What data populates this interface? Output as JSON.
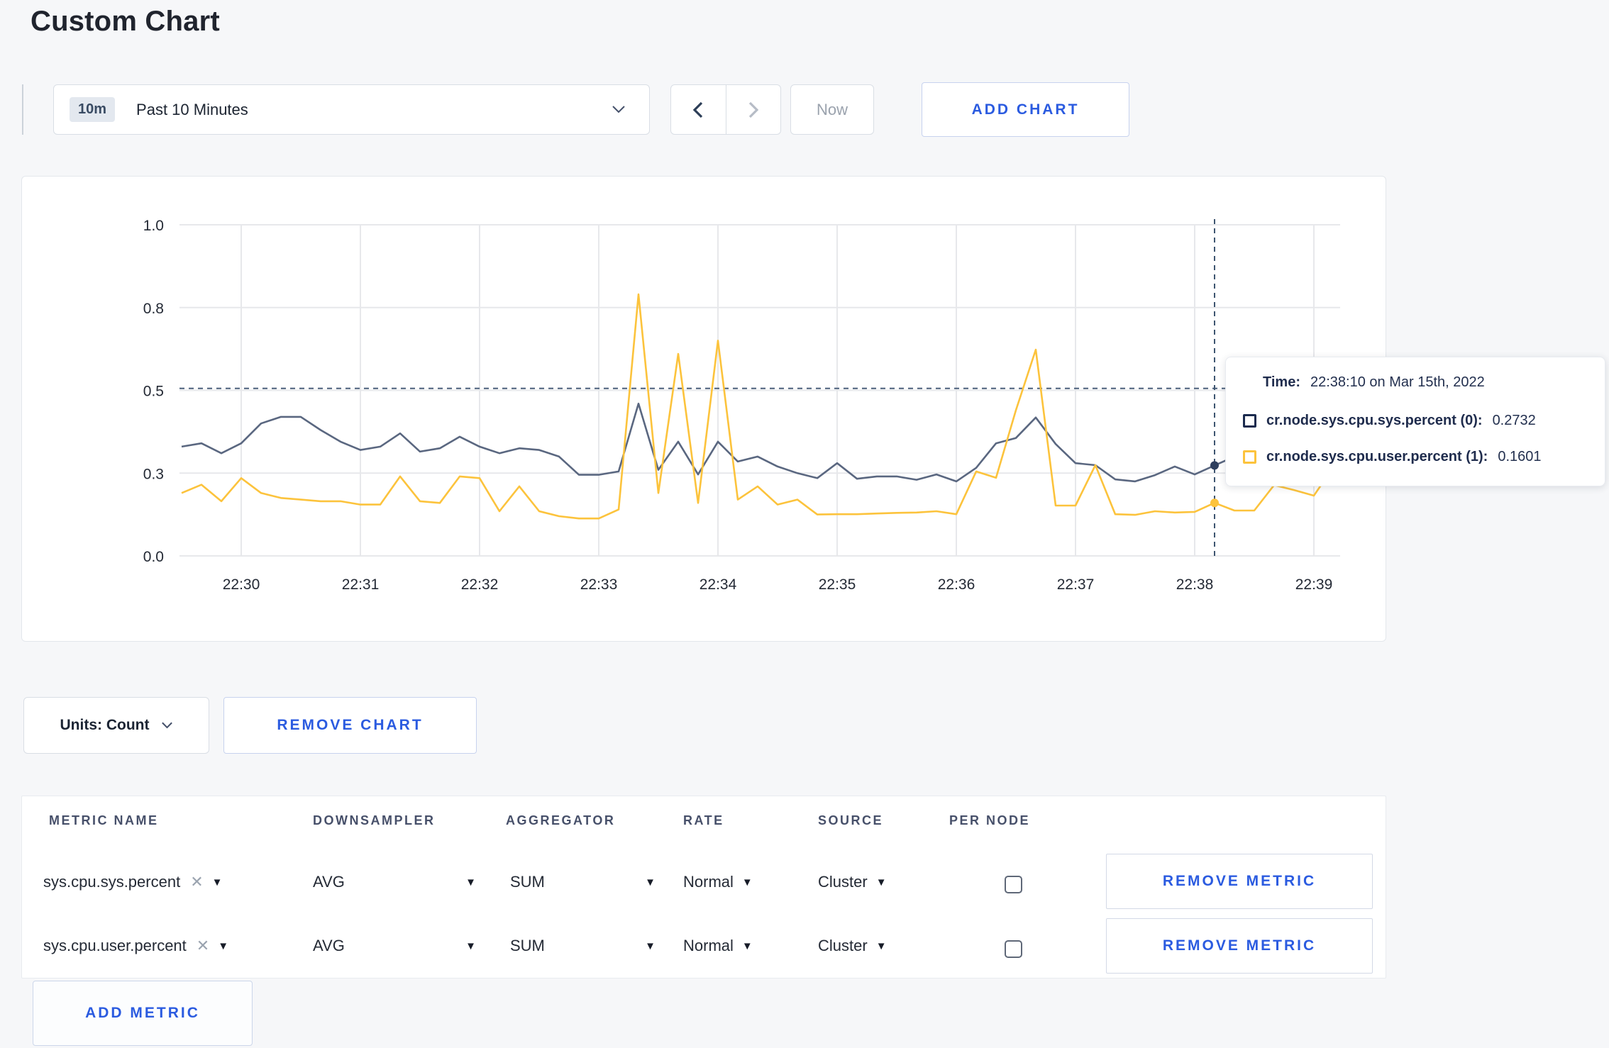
{
  "page": {
    "title": "Custom Chart",
    "accent": "#2b5be0",
    "background": "#f6f7f9"
  },
  "toolbar": {
    "range_badge": "10m",
    "range_label": "Past 10 Minutes",
    "now_label": "Now",
    "add_chart_label": "ADD CHART"
  },
  "chart_data": {
    "type": "line",
    "title": "",
    "xlabel": "",
    "ylabel": "",
    "ylim": [
      0,
      1
    ],
    "grid": true,
    "legend_position": "tooltip-only",
    "y_ticks": {
      "labels": [
        "0.0",
        "0.3",
        "0.5",
        "0.8",
        "1.0"
      ],
      "positions": [
        0,
        0.25,
        0.5,
        0.75,
        1.0
      ]
    },
    "x_ticks": [
      "22:30",
      "22:31",
      "22:32",
      "22:33",
      "22:34",
      "22:35",
      "22:36",
      "22:37",
      "22:38",
      "22:39"
    ],
    "x_start_seconds": -30,
    "x_step_seconds": 10,
    "series": [
      {
        "name": "cr.node.sys.cpu.sys.percent (0)",
        "color": "#5a6780",
        "values": [
          0.33,
          0.34,
          0.31,
          0.34,
          0.4,
          0.42,
          0.42,
          0.38,
          0.345,
          0.32,
          0.33,
          0.37,
          0.315,
          0.325,
          0.36,
          0.33,
          0.31,
          0.325,
          0.32,
          0.3,
          0.245,
          0.245,
          0.255,
          0.46,
          0.26,
          0.345,
          0.246,
          0.345,
          0.285,
          0.3,
          0.27,
          0.25,
          0.235,
          0.28,
          0.233,
          0.24,
          0.24,
          0.23,
          0.246,
          0.225,
          0.266,
          0.34,
          0.356,
          0.418,
          0.338,
          0.28,
          0.274,
          0.231,
          0.225,
          0.244,
          0.27,
          0.246,
          0.2732,
          0.3,
          0.31,
          0.295,
          0.3,
          0.305,
          0.3
        ]
      },
      {
        "name": "cr.node.sys.cpu.user.percent (1)",
        "color": "#fcc33c",
        "values": [
          0.19,
          0.215,
          0.165,
          0.235,
          0.19,
          0.175,
          0.17,
          0.165,
          0.165,
          0.155,
          0.155,
          0.24,
          0.165,
          0.16,
          0.24,
          0.235,
          0.135,
          0.21,
          0.135,
          0.12,
          0.113,
          0.113,
          0.14,
          0.79,
          0.19,
          0.61,
          0.16,
          0.65,
          0.17,
          0.21,
          0.155,
          0.17,
          0.125,
          0.126,
          0.126,
          0.128,
          0.13,
          0.131,
          0.135,
          0.126,
          0.255,
          0.236,
          0.44,
          0.623,
          0.152,
          0.152,
          0.274,
          0.126,
          0.124,
          0.135,
          0.131,
          0.133,
          0.1601,
          0.137,
          0.137,
          0.214,
          0.199,
          0.182,
          0.27
        ]
      }
    ],
    "hover": {
      "t_seconds": 490,
      "crosshair_y_value": 0.506,
      "dot_values": [
        0.2732,
        0.1601
      ]
    },
    "colors": {
      "grid": "#e7e8eb",
      "axis_text": "#242a35",
      "crosshair": "#4a5f7a"
    }
  },
  "tooltip": {
    "time_label": "Time:",
    "time_value": "22:38:10 on Mar 15th, 2022",
    "rows": [
      {
        "label": "cr.node.sys.cpu.sys.percent (0):",
        "value": "0.2732",
        "swatch": "#1b2b4e"
      },
      {
        "label": "cr.node.sys.cpu.user.percent (1):",
        "value": "0.1601",
        "swatch": "#fcc33c"
      }
    ]
  },
  "chart_controls": {
    "units_label": "Units: Count",
    "remove_chart_label": "REMOVE CHART"
  },
  "metrics_table": {
    "headers": [
      "METRIC NAME",
      "DOWNSAMPLER",
      "AGGREGATOR",
      "RATE",
      "SOURCE",
      "PER NODE"
    ],
    "remove_label": "REMOVE METRIC",
    "clear_glyph": "✕",
    "rows": [
      {
        "metric": "sys.cpu.sys.percent",
        "downsampler": "AVG",
        "aggregator": "SUM",
        "rate": "Normal",
        "source": "Cluster",
        "per_node": false
      },
      {
        "metric": "sys.cpu.user.percent",
        "downsampler": "AVG",
        "aggregator": "SUM",
        "rate": "Normal",
        "source": "Cluster",
        "per_node": false
      }
    ],
    "add_metric_label": "ADD METRIC"
  }
}
